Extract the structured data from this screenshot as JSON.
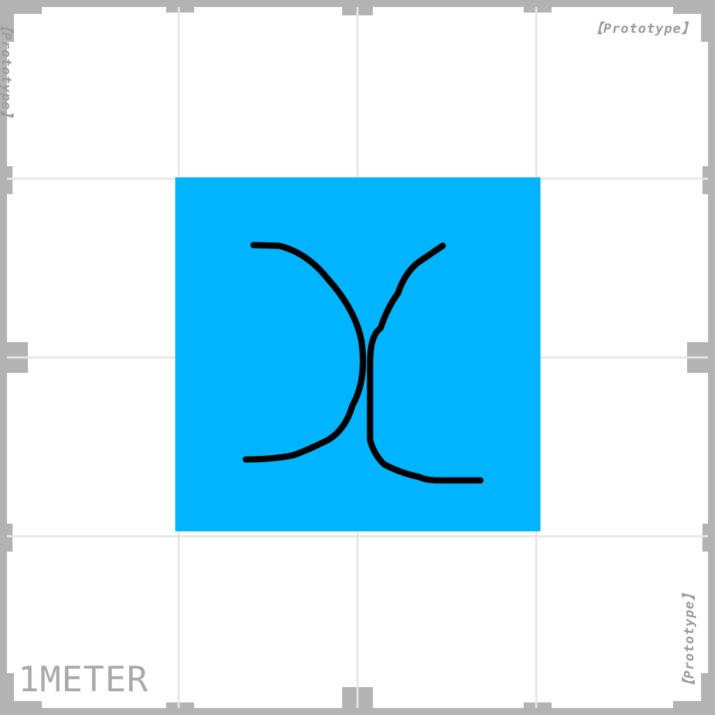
{
  "texture": {
    "colors": {
      "background": "#ffffff",
      "border_frame": "#b3b3b3",
      "grid_line": "#e6e6e6",
      "accent_square": "#00b4ff",
      "symbol_stroke": "#000000",
      "label_text": "#9c9c9c"
    },
    "grid_divisions": 4
  },
  "labels": {
    "prototype_top_right": "【Prototype】",
    "prototype_top_left": "【Prototype】",
    "prototype_bottom_right": "【Prototype】",
    "scale": "1METER"
  },
  "symbol": {
    "description_icon": "hand-drawn-double-curve-icon"
  }
}
